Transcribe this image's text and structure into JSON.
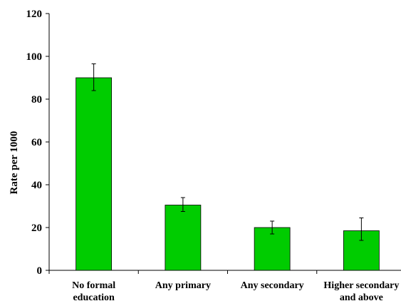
{
  "chart_data": {
    "type": "bar",
    "title": "",
    "xlabel": "",
    "ylabel": "Rate per 1000",
    "ylim": [
      0,
      120
    ],
    "yticks": [
      0,
      20,
      40,
      60,
      80,
      100,
      120
    ],
    "categories": [
      [
        "No formal",
        "education"
      ],
      [
        "Any primary"
      ],
      [
        "Any secondary"
      ],
      [
        "Higher secondary",
        "and above"
      ]
    ],
    "values": [
      90,
      30.5,
      20,
      18.5
    ],
    "error_low": [
      84,
      27.5,
      17,
      14
    ],
    "error_high": [
      96.5,
      34,
      23,
      24.5
    ],
    "bar_color": "#00cc00",
    "grid": false,
    "legend": "none"
  }
}
